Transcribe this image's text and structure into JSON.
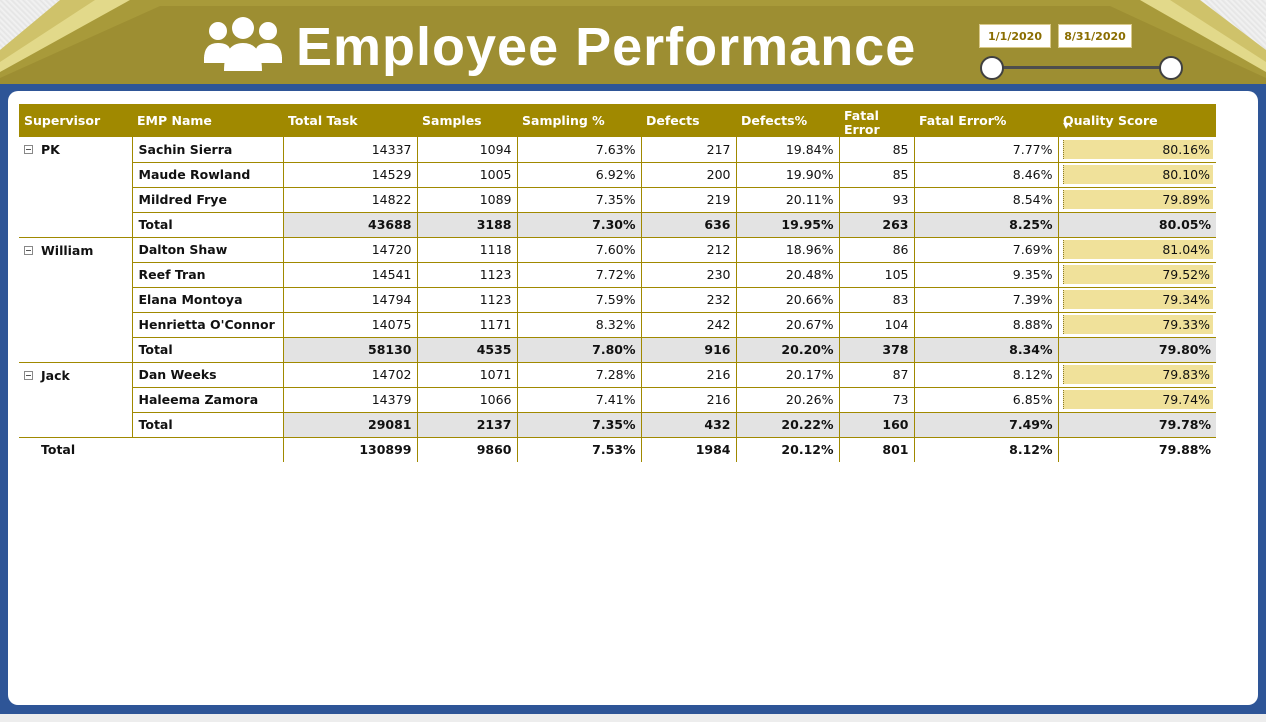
{
  "header": {
    "title": "Employee Performance",
    "icon": "people-group-icon",
    "date_start": "1/1/2020",
    "date_end": "8/31/2020"
  },
  "colors": {
    "banner": "#a89a3a",
    "header_row": "#a08900",
    "frame": "#2e5597",
    "quality_bar": "#f0e19a",
    "subtotal_bg": "#e3e3e3"
  },
  "table": {
    "columns": [
      "Supervisor",
      "EMP Name",
      "Total Task",
      "Samples",
      "Sampling %",
      "Defects",
      "Defects%",
      "Fatal Error",
      "Fatal Error%",
      "Quality Score"
    ],
    "groups": [
      {
        "supervisor": "PK",
        "rows": [
          {
            "name": "Sachin Sierra",
            "total_task": "14337",
            "samples": "1094",
            "sampling_pct": "7.63%",
            "defects": "217",
            "defects_pct": "19.84%",
            "fatal_error": "85",
            "fatal_error_pct": "7.77%",
            "quality_score": "80.16%"
          },
          {
            "name": "Maude Rowland",
            "total_task": "14529",
            "samples": "1005",
            "sampling_pct": "6.92%",
            "defects": "200",
            "defects_pct": "19.90%",
            "fatal_error": "85",
            "fatal_error_pct": "8.46%",
            "quality_score": "80.10%"
          },
          {
            "name": "Mildred Frye",
            "total_task": "14822",
            "samples": "1089",
            "sampling_pct": "7.35%",
            "defects": "219",
            "defects_pct": "20.11%",
            "fatal_error": "93",
            "fatal_error_pct": "8.54%",
            "quality_score": "79.89%"
          }
        ],
        "total": {
          "name": "Total",
          "total_task": "43688",
          "samples": "3188",
          "sampling_pct": "7.30%",
          "defects": "636",
          "defects_pct": "19.95%",
          "fatal_error": "263",
          "fatal_error_pct": "8.25%",
          "quality_score": "80.05%"
        }
      },
      {
        "supervisor": "William",
        "rows": [
          {
            "name": "Dalton Shaw",
            "total_task": "14720",
            "samples": "1118",
            "sampling_pct": "7.60%",
            "defects": "212",
            "defects_pct": "18.96%",
            "fatal_error": "86",
            "fatal_error_pct": "7.69%",
            "quality_score": "81.04%"
          },
          {
            "name": "Reef Tran",
            "total_task": "14541",
            "samples": "1123",
            "sampling_pct": "7.72%",
            "defects": "230",
            "defects_pct": "20.48%",
            "fatal_error": "105",
            "fatal_error_pct": "9.35%",
            "quality_score": "79.52%"
          },
          {
            "name": "Elana Montoya",
            "total_task": "14794",
            "samples": "1123",
            "sampling_pct": "7.59%",
            "defects": "232",
            "defects_pct": "20.66%",
            "fatal_error": "83",
            "fatal_error_pct": "7.39%",
            "quality_score": "79.34%"
          },
          {
            "name": "Henrietta O'Connor",
            "total_task": "14075",
            "samples": "1171",
            "sampling_pct": "8.32%",
            "defects": "242",
            "defects_pct": "20.67%",
            "fatal_error": "104",
            "fatal_error_pct": "8.88%",
            "quality_score": "79.33%"
          }
        ],
        "total": {
          "name": "Total",
          "total_task": "58130",
          "samples": "4535",
          "sampling_pct": "7.80%",
          "defects": "916",
          "defects_pct": "20.20%",
          "fatal_error": "378",
          "fatal_error_pct": "8.34%",
          "quality_score": "79.80%"
        }
      },
      {
        "supervisor": "Jack",
        "rows": [
          {
            "name": "Dan Weeks",
            "total_task": "14702",
            "samples": "1071",
            "sampling_pct": "7.28%",
            "defects": "216",
            "defects_pct": "20.17%",
            "fatal_error": "87",
            "fatal_error_pct": "8.12%",
            "quality_score": "79.83%"
          },
          {
            "name": "Haleema Zamora",
            "total_task": "14379",
            "samples": "1066",
            "sampling_pct": "7.41%",
            "defects": "216",
            "defects_pct": "20.26%",
            "fatal_error": "73",
            "fatal_error_pct": "6.85%",
            "quality_score": "79.74%"
          }
        ],
        "total": {
          "name": "Total",
          "total_task": "29081",
          "samples": "2137",
          "sampling_pct": "7.35%",
          "defects": "432",
          "defects_pct": "20.22%",
          "fatal_error": "160",
          "fatal_error_pct": "7.49%",
          "quality_score": "79.78%"
        }
      }
    ],
    "grand_total": {
      "label": "Total",
      "total_task": "130899",
      "samples": "9860",
      "sampling_pct": "7.53%",
      "defects": "1984",
      "defects_pct": "20.12%",
      "fatal_error": "801",
      "fatal_error_pct": "8.12%",
      "quality_score": "79.88%"
    }
  }
}
